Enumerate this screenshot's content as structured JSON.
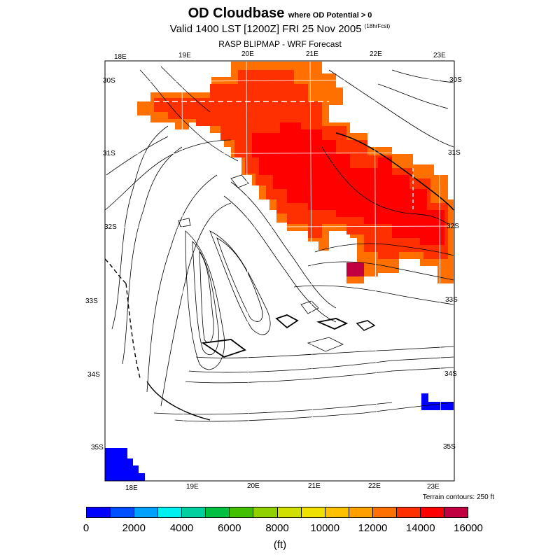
{
  "header": {
    "title": "OD Cloudbase",
    "title_suffix": "where OD Potential > 0",
    "valid_line": "Valid 1400 LST [1200Z] FRI 25 Nov 2005",
    "forecast_tag": "(18hrFcst)",
    "model_line": "RASP BLIPMAP - WRF Forecast"
  },
  "map": {
    "top_lon_labels": [
      "18E",
      "19E",
      "20E",
      "21E",
      "22E",
      "23E"
    ],
    "bottom_lon_labels": [
      "18E",
      "19E",
      "20E",
      "21E",
      "22E",
      "23E"
    ],
    "left_lat_labels": [
      "30S",
      "31S",
      "32S",
      "33S",
      "34S",
      "35S"
    ],
    "right_lat_labels": [
      "30S",
      "31S",
      "32S",
      "33S",
      "34S",
      "35S"
    ],
    "terrain_note": "Terrain contours: 250 ft"
  },
  "colorbar": {
    "colors": [
      "#0000ff",
      "#0050ff",
      "#00a0ff",
      "#00f0f0",
      "#00d0a0",
      "#00c040",
      "#40c000",
      "#90d000",
      "#d0e000",
      "#f0e000",
      "#ffc000",
      "#ffa000",
      "#ff7000",
      "#ff3000",
      "#ff0000",
      "#c00040"
    ],
    "tick_labels": [
      "0",
      "2000",
      "4000",
      "6000",
      "8000",
      "10000",
      "12000",
      "14000",
      "16000"
    ],
    "units": "(ft)"
  }
}
